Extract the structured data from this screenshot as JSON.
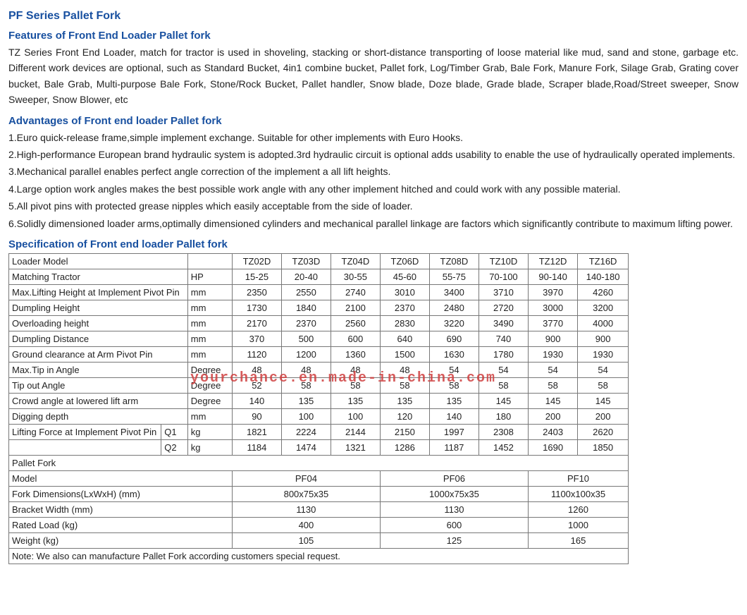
{
  "title": "PF Series Pallet Fork",
  "sections": {
    "features": {
      "heading": "Features of Front End Loader Pallet fork",
      "text": "TZ Series Front End Loader, match for tractor is used in shoveling, stacking or short-distance transporting of loose material like mud, sand and stone, garbage etc. Different work devices are optional, such as Standard Bucket, 4in1 combine bucket, Pallet fork, Log/Timber Grab, Bale Fork, Manure Fork, Silage Grab, Grating cover bucket, Bale Grab, Multi-purpose Bale Fork, Stone/Rock Bucket, Pallet handler, Snow blade, Doze blade, Grade blade, Scraper blade,Road/Street sweeper, Snow Sweeper, Snow Blower, etc"
    },
    "advantages": {
      "heading": "Advantages of Front end loader Pallet fork",
      "items": [
        "1.Euro quick-release frame,simple implement exchange. Suitable for other implements with Euro Hooks.",
        "2.High-performance European brand hydraulic system is adopted.3rd hydraulic circuit is optional adds usability to enable the use of hydraulically operated implements.",
        "3.Mechanical parallel enables perfect angle correction of the implement a all lift heights.",
        "4.Large option work angles makes the best possible work angle with any other implement hitched and could work with any possible material.",
        "5.All pivot pins with protected grease nipples which easily acceptable from the side of loader.",
        "6.Solidly dimensioned loader arms,optimally dimensioned cylinders and mechanical parallel linkage are factors which significantly contribute to maximum lifting power."
      ]
    },
    "specification": {
      "heading": "Specification of Front end loader Pallet fork"
    }
  },
  "spec_table": {
    "header_label": "Loader Model",
    "columns": [
      "TZ02D",
      "TZ03D",
      "TZ04D",
      "TZ06D",
      "TZ08D",
      "TZ10D",
      "TZ12D",
      "TZ16D"
    ],
    "rows": [
      {
        "label": "Matching Tractor",
        "unit": "HP",
        "vals": [
          "15-25",
          "20-40",
          "30-55",
          "45-60",
          "55-75",
          "70-100",
          "90-140",
          "140-180"
        ]
      },
      {
        "label": "Max.Lifting Height at Implement Pivot Pin",
        "unit": "mm",
        "vals": [
          "2350",
          "2550",
          "2740",
          "3010",
          "3400",
          "3710",
          "3970",
          "4260"
        ]
      },
      {
        "label": "Dumpling Height",
        "unit": "mm",
        "vals": [
          "1730",
          "1840",
          "2100",
          "2370",
          "2480",
          "2720",
          "3000",
          "3200"
        ]
      },
      {
        "label": "Overloading height",
        "unit": "mm",
        "vals": [
          "2170",
          "2370",
          "2560",
          "2830",
          "3220",
          "3490",
          "3770",
          "4000"
        ]
      },
      {
        "label": "Dumpling Distance",
        "unit": "mm",
        "vals": [
          "370",
          "500",
          "600",
          "640",
          "690",
          "740",
          "900",
          "900"
        ]
      },
      {
        "label": "Ground clearance at Arm Pivot Pin",
        "unit": "mm",
        "vals": [
          "1120",
          "1200",
          "1360",
          "1500",
          "1630",
          "1780",
          "1930",
          "1930"
        ]
      },
      {
        "label": "Max.Tip in Angle",
        "unit": "Degree",
        "vals": [
          "48",
          "48",
          "48",
          "48",
          "54",
          "54",
          "54",
          "54"
        ]
      },
      {
        "label": "Tip out Angle",
        "unit": "Degree",
        "vals": [
          "52",
          "58",
          "58",
          "58",
          "58",
          "58",
          "58",
          "58"
        ]
      },
      {
        "label": "Crowd angle at lowered lift arm",
        "unit": "Degree",
        "vals": [
          "140",
          "135",
          "135",
          "135",
          "135",
          "145",
          "145",
          "145"
        ]
      },
      {
        "label": "Digging depth",
        "unit": "mm",
        "vals": [
          "90",
          "100",
          "100",
          "120",
          "140",
          "180",
          "200",
          "200"
        ]
      }
    ],
    "lifting_force": {
      "label": "Lifting Force at Implement Pivot Pin",
      "q1": {
        "sub": "Q1",
        "unit": "kg",
        "vals": [
          "1821",
          "2224",
          "2144",
          "2150",
          "1997",
          "2308",
          "2403",
          "2620"
        ]
      },
      "q2": {
        "sub": "Q2",
        "unit": "kg",
        "vals": [
          "1184",
          "1474",
          "1321",
          "1286",
          "1187",
          "1452",
          "1690",
          "1850"
        ]
      }
    },
    "pallet_section": "Pallet Fork",
    "pallet_rows": [
      {
        "label": "Model",
        "vals": [
          "PF04",
          "PF06",
          "PF10"
        ]
      },
      {
        "label": "Fork Dimensions(LxWxH) (mm)",
        "vals": [
          "800x75x35",
          "1000x75x35",
          "1100x100x35"
        ]
      },
      {
        "label": "Bracket Width (mm)",
        "vals": [
          "1130",
          "1130",
          "1260"
        ]
      },
      {
        "label": "Rated Load (kg)",
        "vals": [
          "400",
          "600",
          "1000"
        ]
      },
      {
        "label": "Weight (kg)",
        "vals": [
          "105",
          "125",
          "165"
        ]
      }
    ],
    "note": "Note: We also can manufacture Pallet Fork according customers special request."
  },
  "watermark": "yourchance.en.made-in-china.com",
  "colors": {
    "heading": "#1850a0",
    "border": "#777777",
    "watermark": "#d04040",
    "background": "#ffffff"
  }
}
